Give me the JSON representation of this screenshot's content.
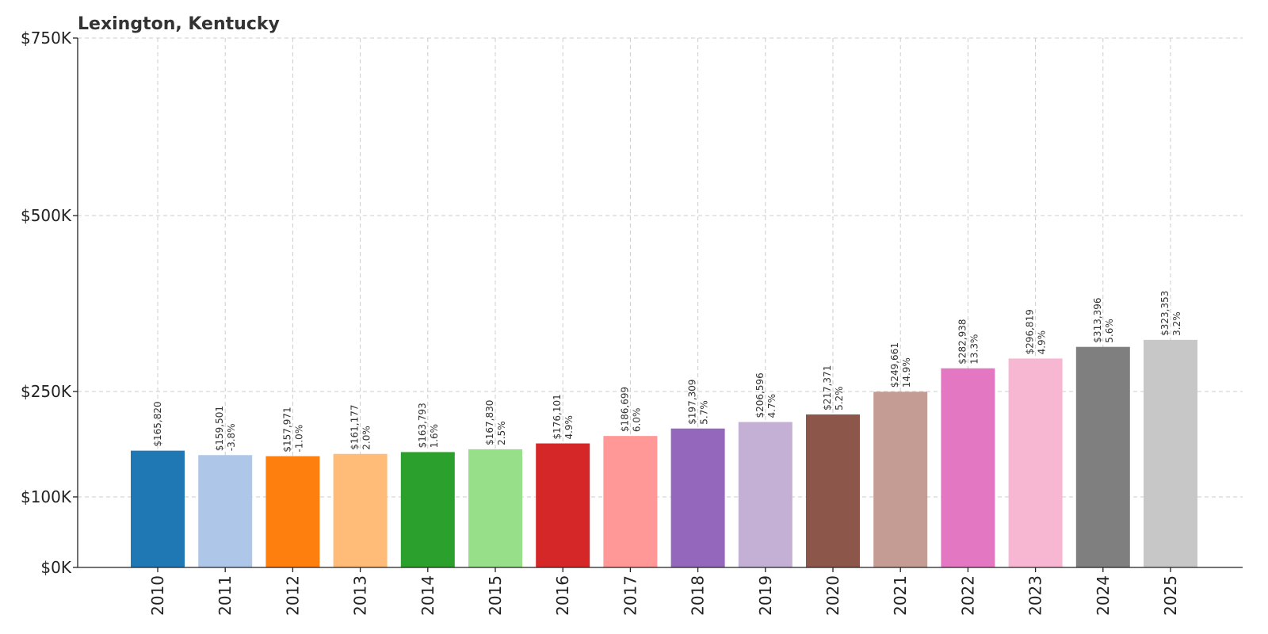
{
  "chart_data": {
    "type": "bar",
    "title": "Lexington, Kentucky",
    "xlabel": "",
    "ylabel": "",
    "ylim": [
      0,
      750000
    ],
    "y_scale": "non-uniform (tick positions: $0K, $100K, $250K, $500K, $750K)",
    "y_ticks": [
      {
        "value": 0,
        "label": "$0K"
      },
      {
        "value": 100000,
        "label": "$100K"
      },
      {
        "value": 250000,
        "label": "$250K"
      },
      {
        "value": 500000,
        "label": "$500K"
      },
      {
        "value": 750000,
        "label": "$750K"
      }
    ],
    "grid": true,
    "legend": "none",
    "categories": [
      "2010",
      "2011",
      "2012",
      "2013",
      "2014",
      "2015",
      "2016",
      "2017",
      "2018",
      "2019",
      "2020",
      "2021",
      "2022",
      "2023",
      "2024",
      "2025"
    ],
    "values": [
      165820,
      159501,
      157971,
      161177,
      163793,
      167830,
      176101,
      186699,
      197309,
      206596,
      217371,
      249661,
      282938,
      296819,
      313396,
      323353
    ],
    "value_labels": [
      "$165,820",
      "$159,501",
      "$157,971",
      "$161,177",
      "$163,793",
      "$167,830",
      "$176,101",
      "$186,699",
      "$197,309",
      "$206,596",
      "$217,371",
      "$249,661",
      "$282,938",
      "$296,819",
      "$313,396",
      "$323,353"
    ],
    "change_labels": [
      "",
      "-3.8%",
      "-1.0%",
      "2.0%",
      "1.6%",
      "2.5%",
      "4.9%",
      "6.0%",
      "5.7%",
      "4.7%",
      "5.2%",
      "14.9%",
      "13.3%",
      "4.9%",
      "5.6%",
      "3.2%"
    ],
    "colors": [
      "#1f77b4",
      "#aec7e8",
      "#ff7f0e",
      "#ffbb78",
      "#2ca02c",
      "#98df8a",
      "#d62728",
      "#ff9896",
      "#9467bd",
      "#c5b0d5",
      "#8c564b",
      "#c49c94",
      "#e377c2",
      "#f7b6d2",
      "#7f7f7f",
      "#c7c7c7"
    ]
  }
}
